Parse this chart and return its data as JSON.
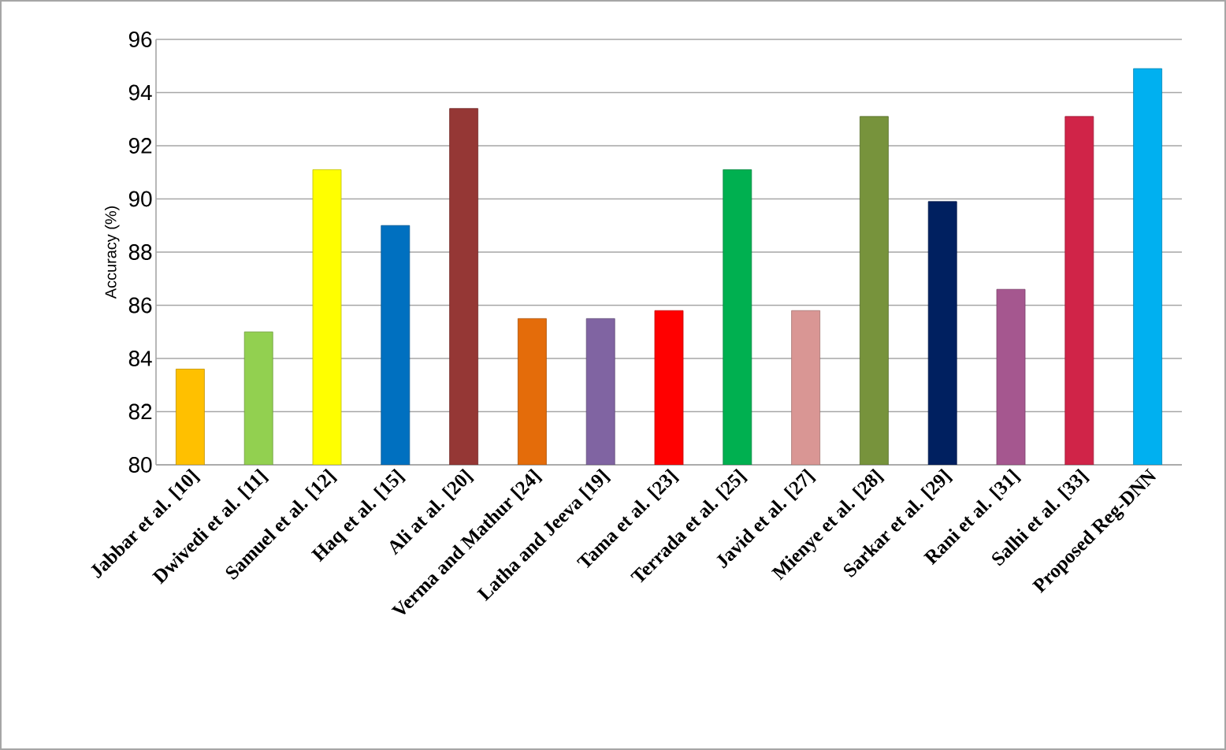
{
  "chart_data": {
    "type": "bar",
    "ylabel": "Accuracy (%)",
    "categories": [
      "Jabbar et al. [10]",
      "Dwivedi et al. [11]",
      "Samuel et al. [12]",
      "Haq et al. [15]",
      "Ali at al. [20]",
      "Verma and Mathur [24]",
      "Latha and  Jeeva [19]",
      "Tama et al. [23]",
      "Terrada et al. [25]",
      "Javid et al. [27]",
      "Mienye et al. [28]",
      "Sarkar et al. [29]",
      "Rani et al. [31]",
      "Salhi et al. [33]",
      "Proposed Reg-DNN"
    ],
    "values": [
      83.6,
      85.0,
      91.1,
      89.0,
      93.4,
      85.5,
      85.5,
      85.8,
      91.1,
      85.8,
      93.1,
      89.9,
      86.6,
      93.1,
      94.9
    ],
    "colors": [
      "#ffc000",
      "#92d050",
      "#ffff00",
      "#0070c0",
      "#953735",
      "#e46c0a",
      "#8064a2",
      "#ff0000",
      "#00b050",
      "#d99694",
      "#77933c",
      "#002060",
      "#a5578f",
      "#d02448",
      "#00b0f0"
    ],
    "ylim": [
      80,
      96
    ],
    "yticks": [
      80,
      82,
      84,
      86,
      88,
      90,
      92,
      94,
      96
    ],
    "grid": "y"
  }
}
